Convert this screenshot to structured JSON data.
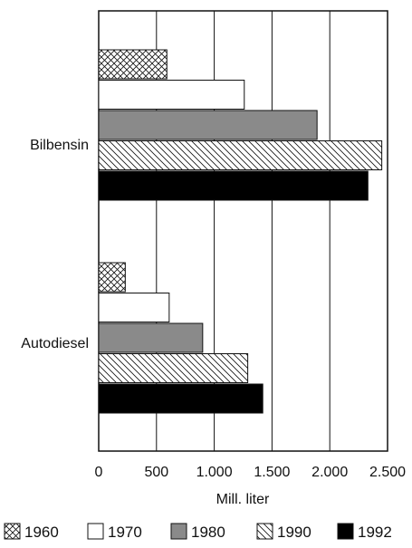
{
  "chart_data": {
    "type": "bar",
    "orientation": "horizontal",
    "title": "",
    "xlabel": "Mill. liter",
    "ylabel": "",
    "categories": [
      "Bilbensin",
      "Autodiesel"
    ],
    "series": [
      {
        "name": "1960",
        "values": [
          590,
          230
        ],
        "fill": "crosshatch"
      },
      {
        "name": "1970",
        "values": [
          1260,
          610
        ],
        "fill": "white"
      },
      {
        "name": "1980",
        "values": [
          1890,
          900
        ],
        "fill": "gray"
      },
      {
        "name": "1990",
        "values": [
          2450,
          1290
        ],
        "fill": "diagonal"
      },
      {
        "name": "1992",
        "values": [
          2330,
          1420
        ],
        "fill": "black"
      }
    ],
    "xlim": [
      0,
      2500
    ],
    "xticks": [
      0,
      500,
      1000,
      1500,
      2000,
      2500
    ],
    "xtick_labels": [
      "0",
      "500",
      "1.000",
      "1.500",
      "2.000",
      "2.500"
    ],
    "grid": "vertical",
    "legend": "bottom"
  },
  "colors": {
    "stroke": "#111111",
    "gray_fill": "#8a8a8a",
    "black_fill": "#000000",
    "white_fill": "#ffffff"
  }
}
